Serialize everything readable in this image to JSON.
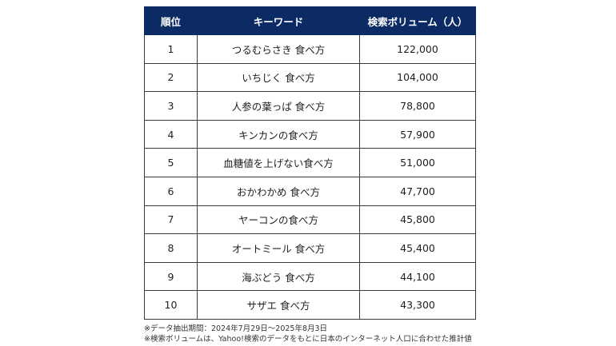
{
  "table": {
    "headers": [
      "順位",
      "キーワード",
      "検索ボリューム（人）"
    ],
    "rows": [
      {
        "rank": "1",
        "keyword": "つるむらさき 食べ方",
        "volume": "122,000"
      },
      {
        "rank": "2",
        "keyword": "いちじく 食べ方",
        "volume": "104,000"
      },
      {
        "rank": "3",
        "keyword": "人参の葉っぱ 食べ方",
        "volume": "78,800"
      },
      {
        "rank": "4",
        "keyword": "キンカンの食べ方",
        "volume": "57,900"
      },
      {
        "rank": "5",
        "keyword": "血糖値を上げない食べ方",
        "volume": "51,000"
      },
      {
        "rank": "6",
        "keyword": "おかわかめ 食べ方",
        "volume": "47,700"
      },
      {
        "rank": "7",
        "keyword": "ヤーコンの食べ方",
        "volume": "45,800"
      },
      {
        "rank": "8",
        "keyword": "オートミール 食べ方",
        "volume": "45,400"
      },
      {
        "rank": "9",
        "keyword": "海ぶどう 食べ方",
        "volume": "44,100"
      },
      {
        "rank": "10",
        "keyword": "サザエ 食べ方",
        "volume": "43,300"
      }
    ]
  },
  "notes": [
    "※データ抽出期間：2024年7月29日〜2025年8月3日",
    "※検索ボリュームは、Yahoo!検索のデータをもとに日本のインターネット人口に合わせた推計値"
  ],
  "colors": {
    "header_background": "#0c2a63",
    "header_text": "#ffffff",
    "border": "#3a3a3a"
  }
}
